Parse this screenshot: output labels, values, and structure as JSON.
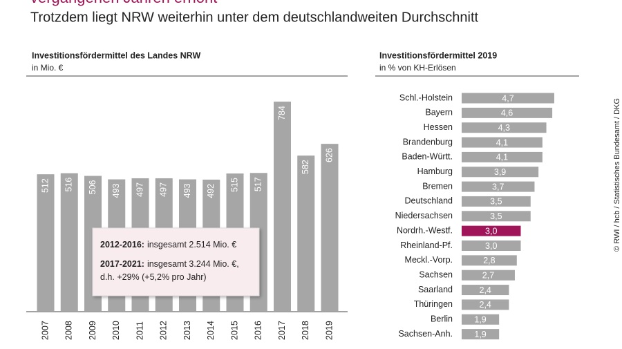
{
  "header": {
    "title": "vergangenen Jahren erhöht",
    "subtitle": "Trotzdem liegt NRW weiterhin unter dem deutschlandweiten Durchschnitt",
    "source": "© RWI / hcb / Statistisches Bundesamt / DKG"
  },
  "chart_data": [
    {
      "type": "bar",
      "title": "Investitionsfördermittel des Landes NRW",
      "subtitle": "in Mio. €",
      "categories": [
        "2007",
        "2008",
        "2009",
        "2010",
        "2011",
        "2012",
        "2013",
        "2014",
        "2015",
        "2016",
        "2017",
        "2018",
        "2019"
      ],
      "values": [
        512,
        516,
        506,
        493,
        497,
        497,
        493,
        492,
        515,
        517,
        784,
        582,
        626
      ],
      "color": "#a6a6a6",
      "ylim": [
        0,
        880
      ],
      "annotation": [
        {
          "bold": "2012-2016:",
          "text": "insgesamt 2.514 Mio. €"
        },
        {
          "bold": "2017-2021:",
          "text": "insgesamt 3.244 Mio. €,"
        },
        {
          "text": "d.h. +29% (+5,2% pro Jahr)"
        }
      ]
    },
    {
      "type": "hbar",
      "title": "Investitionsfördermittel 2019",
      "subtitle": "in % von KH-Erlösen",
      "categories": [
        "Schl.-Holstein",
        "Bayern",
        "Hessen",
        "Brandenburg",
        "Baden-Württ.",
        "Hamburg",
        "Bremen",
        "Deutschland",
        "Niedersachsen",
        "Nordrh.-Westf.",
        "Rheinland-Pf.",
        "Meckl.-Vorp.",
        "Sachsen",
        "Saarland",
        "Thüringen",
        "Berlin",
        "Sachsen-Anh."
      ],
      "values": [
        4.7,
        4.6,
        4.3,
        4.1,
        4.1,
        3.9,
        3.7,
        3.5,
        3.5,
        3.0,
        3.0,
        2.8,
        2.7,
        2.4,
        2.4,
        1.9,
        1.9
      ],
      "value_labels": [
        "4,7",
        "4,6",
        "4,3",
        "4,1",
        "4,1",
        "3,9",
        "3,7",
        "3,5",
        "3,5",
        "3,0",
        "3,0",
        "2,8",
        "2,7",
        "2,4",
        "2,4",
        "1,9",
        "1,9"
      ],
      "colors": [
        "#a6a6a6",
        "#a6a6a6",
        "#a6a6a6",
        "#a6a6a6",
        "#a6a6a6",
        "#a6a6a6",
        "#a6a6a6",
        "#a6a6a6",
        "#a6a6a6",
        "#a0155a",
        "#a6a6a6",
        "#a6a6a6",
        "#a6a6a6",
        "#a6a6a6",
        "#a6a6a6",
        "#a6a6a6",
        "#a6a6a6"
      ],
      "xlim": [
        0,
        6
      ]
    }
  ]
}
